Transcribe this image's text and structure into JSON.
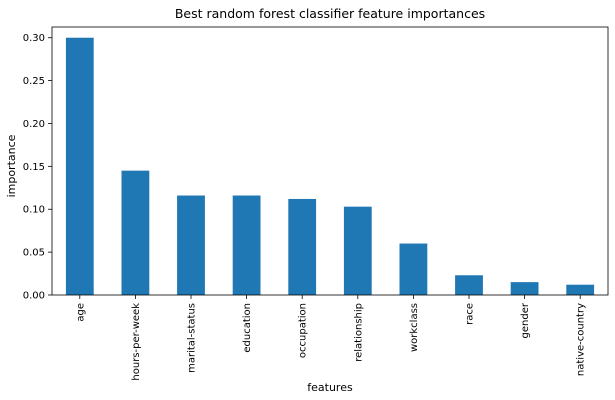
{
  "chart_data": {
    "type": "bar",
    "title": "Best random forest classifier feature importances",
    "xlabel": "features",
    "ylabel": "importance",
    "categories": [
      "age",
      "hours-per-week",
      "marital-status",
      "education",
      "occupation",
      "relationship",
      "workclass",
      "race",
      "gender",
      "native-country"
    ],
    "values": [
      0.3,
      0.145,
      0.116,
      0.116,
      0.112,
      0.103,
      0.06,
      0.023,
      0.015,
      0.012
    ],
    "ylim": [
      0,
      0.3125
    ],
    "yticks": [
      "0.00",
      "0.05",
      "0.10",
      "0.15",
      "0.20",
      "0.25",
      "0.30"
    ],
    "grid": false,
    "bar_color": "#1f77b4"
  }
}
